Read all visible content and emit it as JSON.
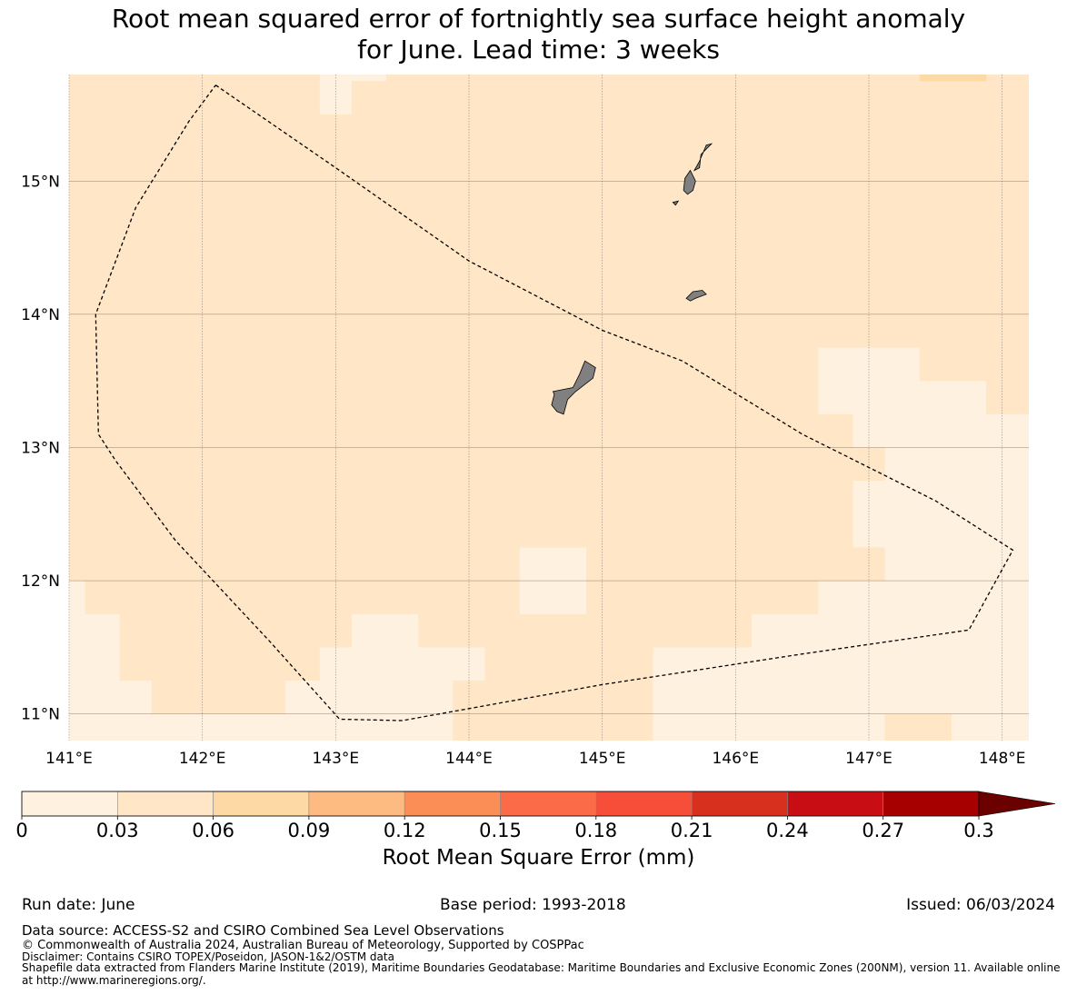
{
  "title": {
    "line1": "Root mean squared error of fortnightly sea surface height anomaly",
    "line2": "for June. Lead time: 3 weeks"
  },
  "map": {
    "lon_range": [
      141.0,
      148.2
    ],
    "lat_range": [
      10.8,
      15.8
    ],
    "lon_ticks": [
      141,
      142,
      143,
      144,
      145,
      146,
      147,
      148
    ],
    "lon_tick_labels": [
      "141°E",
      "142°E",
      "143°E",
      "144°E",
      "145°E",
      "146°E",
      "147°E",
      "148°E"
    ],
    "lat_ticks": [
      11,
      12,
      13,
      14,
      15
    ],
    "lat_tick_labels": [
      "11°N",
      "12°N",
      "13°N",
      "14°N",
      "15°N"
    ],
    "background_color": "#fee6c6",
    "low_color": "#fff1df",
    "high_color": "#fdd9a5",
    "gridlines": true,
    "low_regions": [
      [
        [
          141.0,
          12.0
        ],
        [
          141.12,
          12.0
        ],
        [
          141.12,
          11.75
        ],
        [
          141.38,
          11.75
        ],
        [
          141.38,
          11.25
        ],
        [
          141.62,
          11.25
        ],
        [
          141.62,
          11.0
        ],
        [
          142.62,
          11.0
        ],
        [
          142.62,
          11.25
        ],
        [
          142.88,
          11.25
        ],
        [
          142.88,
          11.5
        ],
        [
          143.12,
          11.5
        ],
        [
          143.12,
          11.75
        ],
        [
          143.62,
          11.75
        ],
        [
          143.62,
          11.5
        ],
        [
          144.12,
          11.5
        ],
        [
          144.12,
          11.25
        ],
        [
          143.88,
          11.25
        ],
        [
          143.88,
          10.8
        ],
        [
          141.0,
          10.8
        ]
      ],
      [
        [
          145.38,
          10.8
        ],
        [
          145.38,
          11.5
        ],
        [
          146.12,
          11.5
        ],
        [
          146.12,
          11.75
        ],
        [
          146.62,
          11.75
        ],
        [
          146.62,
          12.0
        ],
        [
          147.12,
          12.0
        ],
        [
          147.12,
          12.25
        ],
        [
          146.88,
          12.25
        ],
        [
          146.88,
          12.75
        ],
        [
          147.12,
          12.75
        ],
        [
          147.12,
          13.0
        ],
        [
          146.88,
          13.0
        ],
        [
          146.88,
          13.25
        ],
        [
          146.62,
          13.25
        ],
        [
          146.62,
          13.75
        ],
        [
          147.38,
          13.75
        ],
        [
          147.38,
          13.5
        ],
        [
          147.88,
          13.5
        ],
        [
          147.88,
          13.25
        ],
        [
          148.2,
          13.25
        ],
        [
          148.2,
          11.25
        ],
        [
          148.12,
          11.25
        ],
        [
          148.12,
          11.5
        ],
        [
          147.62,
          11.5
        ],
        [
          147.62,
          12.0
        ],
        [
          148.2,
          12.0
        ],
        [
          148.2,
          10.8
        ],
        [
          147.62,
          10.8
        ],
        [
          147.62,
          11.0
        ],
        [
          147.12,
          11.0
        ],
        [
          147.12,
          10.8
        ]
      ],
      [
        [
          144.38,
          11.75
        ],
        [
          144.88,
          11.75
        ],
        [
          144.88,
          12.25
        ],
        [
          144.38,
          12.25
        ]
      ],
      [
        [
          142.88,
          15.5
        ],
        [
          143.12,
          15.5
        ],
        [
          143.12,
          15.8
        ],
        [
          142.88,
          15.8
        ]
      ],
      [
        [
          143.12,
          15.75
        ],
        [
          143.38,
          15.75
        ],
        [
          143.38,
          15.8
        ],
        [
          143.12,
          15.8
        ]
      ]
    ],
    "high_regions": [
      [
        [
          147.38,
          15.75
        ],
        [
          147.88,
          15.75
        ],
        [
          147.88,
          15.8
        ],
        [
          147.38,
          15.8
        ]
      ]
    ],
    "eez_boundary": [
      [
        142.1,
        15.72
      ],
      [
        143.0,
        15.1
      ],
      [
        144.0,
        14.4
      ],
      [
        145.0,
        13.88
      ],
      [
        145.6,
        13.65
      ],
      [
        146.5,
        13.1
      ],
      [
        147.5,
        12.6
      ],
      [
        148.08,
        12.23
      ],
      [
        147.75,
        11.63
      ],
      [
        146.5,
        11.45
      ],
      [
        145.0,
        11.22
      ],
      [
        143.5,
        10.95
      ],
      [
        143.03,
        10.96
      ],
      [
        142.5,
        11.55
      ],
      [
        141.8,
        12.3
      ],
      [
        141.35,
        12.9
      ],
      [
        141.22,
        13.1
      ],
      [
        141.2,
        14.0
      ],
      [
        141.5,
        14.8
      ],
      [
        141.9,
        15.45
      ],
      [
        142.1,
        15.72
      ]
    ],
    "islands": [
      [
        [
          144.63,
          13.42
        ],
        [
          144.78,
          13.45
        ],
        [
          144.83,
          13.55
        ],
        [
          144.87,
          13.65
        ],
        [
          144.95,
          13.6
        ],
        [
          144.93,
          13.52
        ],
        [
          144.8,
          13.42
        ],
        [
          144.74,
          13.36
        ],
        [
          144.71,
          13.25
        ],
        [
          144.66,
          13.27
        ],
        [
          144.62,
          13.32
        ],
        [
          144.64,
          13.4
        ]
      ],
      [
        [
          145.63,
          14.12
        ],
        [
          145.68,
          14.17
        ],
        [
          145.75,
          14.18
        ],
        [
          145.78,
          14.15
        ],
        [
          145.7,
          14.12
        ],
        [
          145.66,
          14.1
        ]
      ],
      [
        [
          145.61,
          14.93
        ],
        [
          145.62,
          15.02
        ],
        [
          145.66,
          15.08
        ],
        [
          145.7,
          15.0
        ],
        [
          145.68,
          14.93
        ],
        [
          145.64,
          14.9
        ]
      ],
      [
        [
          145.69,
          15.08
        ],
        [
          145.73,
          15.15
        ],
        [
          145.78,
          15.27
        ],
        [
          145.82,
          15.28
        ],
        [
          145.74,
          15.2
        ],
        [
          145.73,
          15.1
        ]
      ],
      [
        [
          145.53,
          14.84
        ],
        [
          145.57,
          14.85
        ],
        [
          145.55,
          14.82
        ]
      ]
    ]
  },
  "colorbar": {
    "colors": [
      "#fff1df",
      "#fee6c6",
      "#fdd9a5",
      "#fdbb82",
      "#fb8e57",
      "#fc6b48",
      "#f64e38",
      "#d8301f",
      "#c90d14",
      "#a60000"
    ],
    "extend_color": "#6b0000",
    "tick_labels": [
      "0",
      "0.03",
      "0.06",
      "0.09",
      "0.12",
      "0.15",
      "0.18",
      "0.21",
      "0.24",
      "0.27",
      "0.3"
    ],
    "label": "Root Mean Square Error (mm)"
  },
  "footer": {
    "run_date": "Run date: June",
    "base_period": "Base period: 1993-2018",
    "issued": "Issued: 06/03/2024",
    "data_source": "Data source: ACCESS-S2 and CSIRO Combined Sea Level Observations",
    "copyright": "© Commonwealth of Australia 2024, Australian Bureau of Meteorology, Supported by COSPPac",
    "disclaimer": "Disclaimer: Contains CSIRO TOPEX/Poseidon, JASON-1&2/OSTM data",
    "shapefile_line1": "Shapefile data extracted from Flanders Marine Institute (2019), Maritime Boundaries Geodatabase: Maritime Boundaries and Exclusive Economic Zones (200NM), version 11. Available online",
    "shapefile_line2": "at http://www.marineregions.org/."
  }
}
